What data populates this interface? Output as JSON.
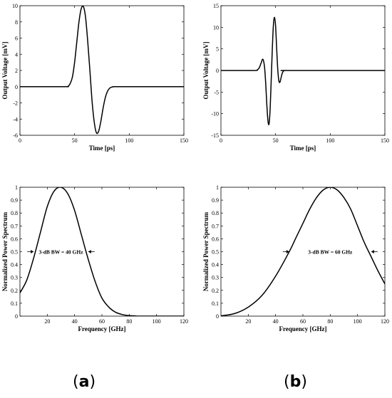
{
  "panel_labels": {
    "a_open": "(",
    "a_letter": "a",
    "a_close": ")",
    "b_open": "(",
    "b_letter": "b",
    "b_close": ")"
  },
  "chart_data": [
    {
      "id": "a-time",
      "type": "line",
      "xlabel": "Time [ps]",
      "ylabel": "Output Voltage [mV]",
      "xlim": [
        0,
        150
      ],
      "ylim": [
        -6,
        10
      ],
      "xticks": [
        0,
        50,
        100,
        150
      ],
      "yticks": [
        -6,
        -4,
        -2,
        0,
        2,
        4,
        6,
        8,
        10
      ],
      "grid": false,
      "series": [
        {
          "x": [
            0,
            40,
            44,
            46,
            48,
            50,
            52,
            54,
            56,
            58,
            60,
            62,
            64,
            66,
            68,
            70,
            72,
            74,
            76,
            78,
            80,
            82,
            84,
            86,
            88,
            90,
            150
          ],
          "y": [
            0,
            0,
            0.05,
            0.4,
            1.2,
            3.0,
            5.5,
            8.0,
            9.6,
            9.9,
            8.6,
            5.6,
            2.0,
            -1.8,
            -4.4,
            -5.7,
            -5.5,
            -4.3,
            -2.7,
            -1.4,
            -0.6,
            -0.2,
            -0.05,
            0,
            0,
            0,
            0
          ]
        }
      ]
    },
    {
      "id": "b-time",
      "type": "line",
      "xlabel": "Time [ps]",
      "ylabel": "Output Voltage [mV]",
      "xlim": [
        0,
        150
      ],
      "ylim": [
        -15,
        15
      ],
      "xticks": [
        0,
        50,
        100,
        150
      ],
      "yticks": [
        -15,
        -10,
        -5,
        0,
        5,
        10,
        15
      ],
      "grid": false,
      "series": [
        {
          "x": [
            0,
            30,
            33,
            35,
            37,
            38,
            39,
            40,
            41,
            42,
            43,
            44,
            45,
            46,
            47,
            48,
            49,
            50,
            51,
            52,
            53,
            54,
            55,
            56,
            57,
            58,
            60,
            62,
            150
          ],
          "y": [
            0,
            0,
            0.1,
            0.6,
            1.9,
            2.6,
            2.2,
            0.5,
            -3.2,
            -8.0,
            -11.6,
            -12.4,
            -9.0,
            -2.2,
            5.0,
            10.5,
            12.3,
            10.3,
            5.0,
            0.2,
            -2.4,
            -2.7,
            -1.7,
            -0.7,
            -0.2,
            0,
            0,
            0,
            0
          ]
        }
      ]
    },
    {
      "id": "a-spectrum",
      "type": "line",
      "xlabel": "Frequency [GHz]",
      "ylabel": "Normalized Power Spectrum",
      "xlim": [
        0,
        120
      ],
      "ylim": [
        0,
        1
      ],
      "xticks": [
        20,
        40,
        60,
        80,
        100,
        120
      ],
      "yticks": [
        0,
        0.1,
        0.2,
        0.3,
        0.4,
        0.5,
        0.6,
        0.7,
        0.8,
        0.9,
        1
      ],
      "grid": false,
      "series": [
        {
          "x": [
            0,
            5,
            10,
            15,
            20,
            25,
            30,
            35,
            40,
            45,
            50,
            55,
            60,
            65,
            70,
            75,
            80,
            85,
            90,
            100,
            110,
            120
          ],
          "y": [
            0.18,
            0.28,
            0.45,
            0.65,
            0.85,
            0.97,
            1.0,
            0.95,
            0.82,
            0.63,
            0.44,
            0.27,
            0.14,
            0.07,
            0.03,
            0.012,
            0.004,
            0.001,
            0,
            0,
            0,
            0
          ]
        }
      ],
      "annotation": {
        "text": "3-dB BW = 40 GHz",
        "x_left": 10,
        "x_right": 50,
        "y": 0.5
      }
    },
    {
      "id": "b-spectrum",
      "type": "line",
      "xlabel": "Frequency [GHz]",
      "ylabel": "Normalized Power Spectrum",
      "xlim": [
        0,
        120
      ],
      "ylim": [
        0,
        1
      ],
      "xticks": [
        20,
        40,
        60,
        80,
        100,
        120
      ],
      "yticks": [
        0,
        0.1,
        0.2,
        0.3,
        0.4,
        0.5,
        0.6,
        0.7,
        0.8,
        0.9,
        1
      ],
      "grid": false,
      "series": [
        {
          "x": [
            0,
            10,
            20,
            30,
            40,
            50,
            55,
            60,
            65,
            70,
            75,
            80,
            85,
            90,
            95,
            100,
            105,
            110,
            115,
            120
          ],
          "y": [
            0.002,
            0.02,
            0.07,
            0.16,
            0.31,
            0.5,
            0.61,
            0.72,
            0.83,
            0.92,
            0.98,
            1.0,
            0.98,
            0.92,
            0.83,
            0.7,
            0.57,
            0.46,
            0.35,
            0.25
          ]
        }
      ],
      "annotation": {
        "text": "3-dB BW = 60 GHz",
        "x_left": 50,
        "x_right": 110,
        "y": 0.5
      }
    }
  ]
}
